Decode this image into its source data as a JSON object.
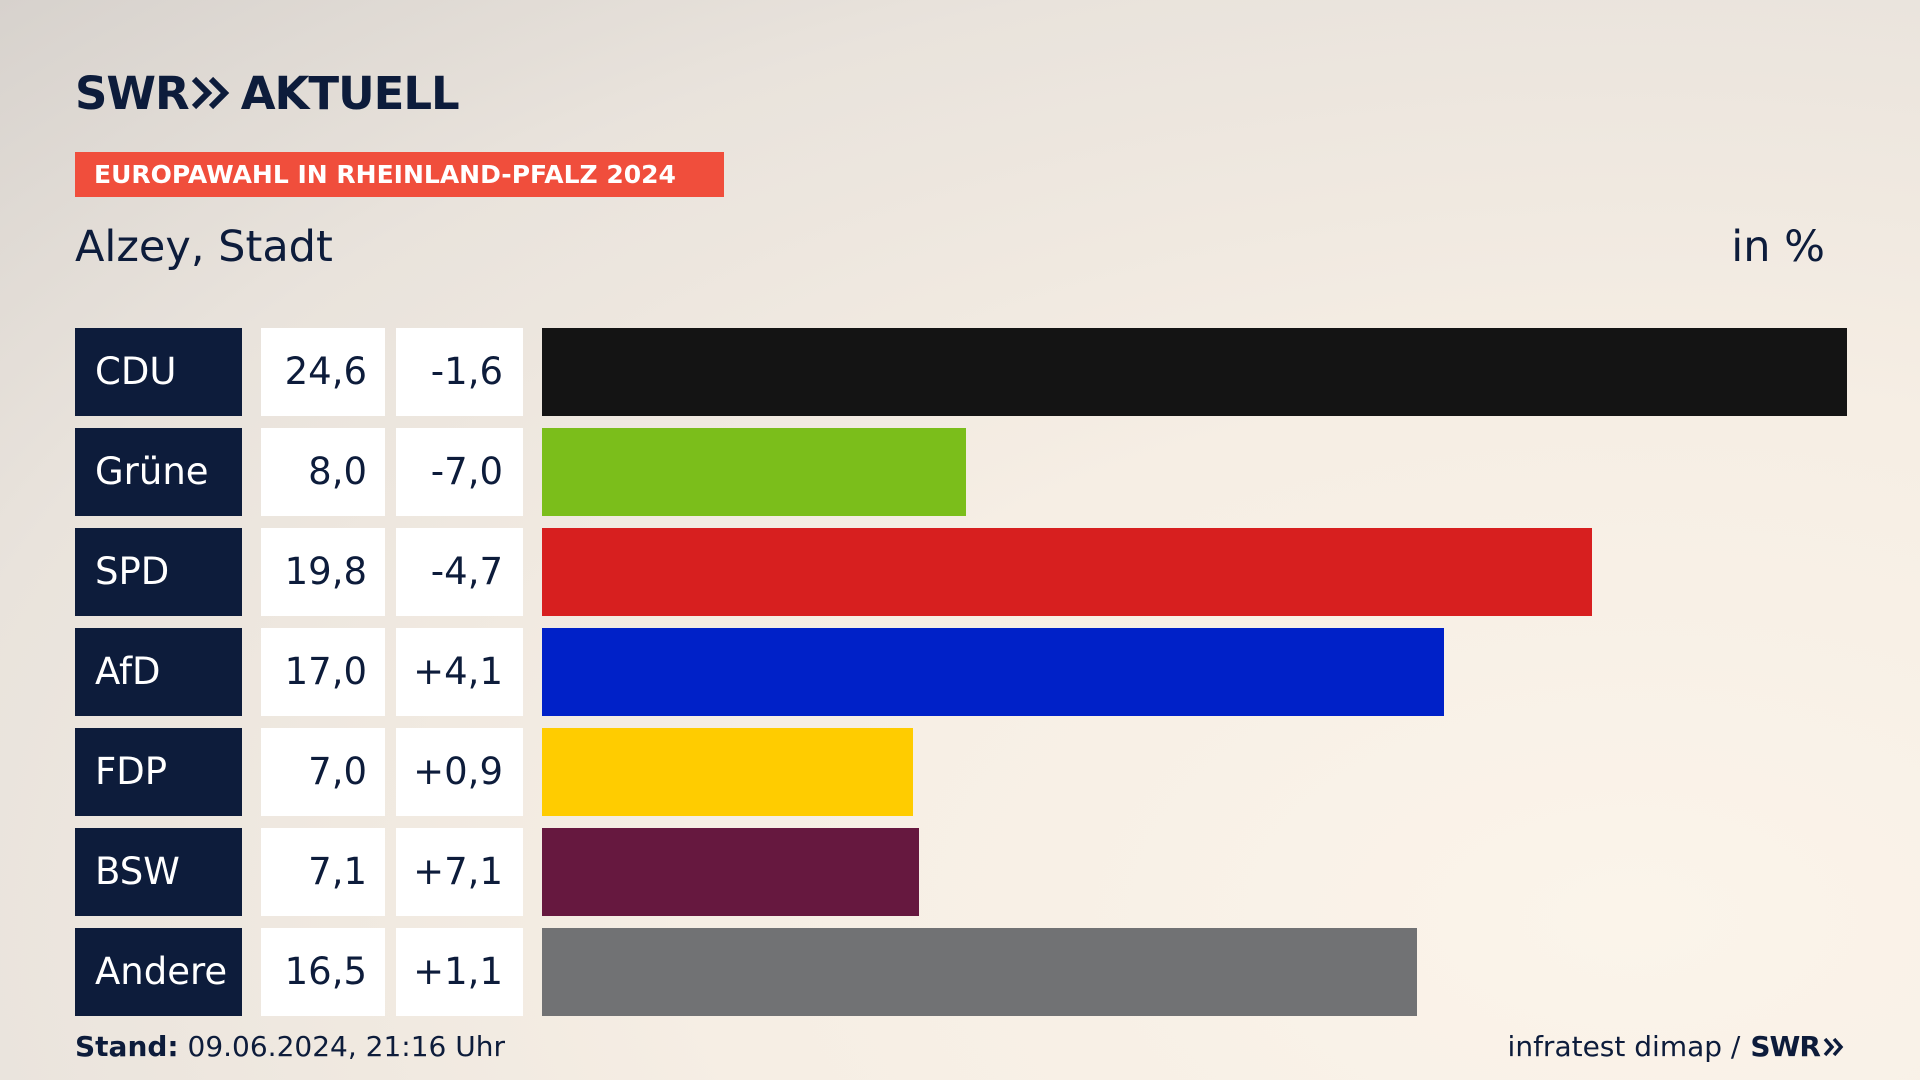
{
  "brand": {
    "logo_swr": "SWR",
    "logo_aktuell": "AKTUELL",
    "logo_icon": "double-chevron-icon",
    "color": "#0d1c3b"
  },
  "header": {
    "banner": "EUROPAWAHL IN RHEINLAND-PFALZ 2024",
    "banner_color": "#f04e3c",
    "place": "Alzey, Stadt",
    "unit": "in %"
  },
  "footer": {
    "stand_label": "Stand:",
    "stand_value": " 09.06.2024, 21:16 Uhr",
    "source": "infratest dimap /",
    "source_logo": "SWR"
  },
  "chart_data": {
    "type": "bar",
    "orientation": "horizontal",
    "categories": [
      "CDU",
      "Grüne",
      "SPD",
      "AfD",
      "FDP",
      "BSW",
      "Andere"
    ],
    "values": [
      "24,6",
      "8,0",
      "19,8",
      "17,0",
      "7,0",
      "7,1",
      "16,5"
    ],
    "numeric_values": [
      24.6,
      8.0,
      19.8,
      17.0,
      7.0,
      7.1,
      16.5
    ],
    "diffs": [
      "-1,6",
      "-7,0",
      "-4,7",
      "+4,1",
      "+0,9",
      "+7,1",
      "+1,1"
    ],
    "colors": [
      "#141414",
      "#7bbe1b",
      "#d71f1f",
      "#0021c8",
      "#ffcc00",
      "#66183f",
      "#717274"
    ],
    "xlim": [
      0,
      24.6
    ]
  }
}
